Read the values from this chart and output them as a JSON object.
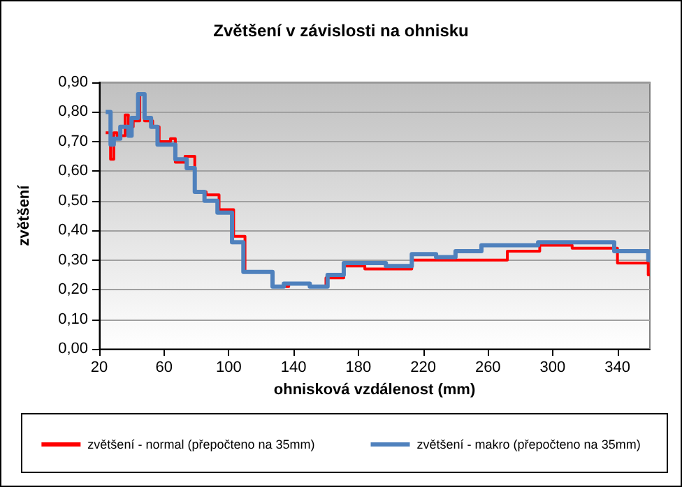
{
  "chart_data": {
    "type": "step",
    "title": "Zvětšení v závislosti na ohnisku",
    "xlabel": "ohnisková vzdálenost (mm)",
    "ylabel": "zvětšení",
    "xlim": [
      20,
      360
    ],
    "xticks": [
      20,
      60,
      100,
      140,
      180,
      220,
      260,
      300,
      340
    ],
    "ylim": [
      0,
      0.9
    ],
    "yticks": [
      {
        "value": 0,
        "label": "0,00"
      },
      {
        "value": 0.1,
        "label": "0,10"
      },
      {
        "value": 0.2,
        "label": "0,20"
      },
      {
        "value": 0.3,
        "label": "0,30"
      },
      {
        "value": 0.4,
        "label": "0,40"
      },
      {
        "value": 0.5,
        "label": "0,50"
      },
      {
        "value": 0.6,
        "label": "0,60"
      },
      {
        "value": 0.7,
        "label": "0,70"
      },
      {
        "value": 0.8,
        "label": "0,80"
      },
      {
        "value": 0.9,
        "label": "0,90"
      }
    ],
    "grid": "y",
    "legend": "bottom",
    "marker": "none",
    "line_style": "solid",
    "series": [
      {
        "name": "zvětšení - normal (přepočteno na 35mm)",
        "color": "#ff0000",
        "x": [
          24,
          27,
          29,
          31,
          36,
          38,
          41,
          45,
          48,
          53,
          57,
          64,
          67,
          73,
          79,
          86,
          94,
          103,
          110,
          127,
          137,
          150,
          160,
          171,
          184,
          213,
          272,
          292,
          312,
          340,
          359,
          360
        ],
        "values": [
          0.73,
          0.64,
          0.73,
          0.72,
          0.79,
          0.75,
          0.77,
          0.86,
          0.77,
          0.75,
          0.7,
          0.71,
          0.63,
          0.65,
          0.53,
          0.52,
          0.47,
          0.38,
          0.26,
          0.21,
          0.22,
          0.21,
          0.24,
          0.28,
          0.27,
          0.3,
          0.33,
          0.35,
          0.34,
          0.29,
          0.25,
          0.25
        ]
      },
      {
        "name": "zvětšení - makro (přepočteno na 35mm)",
        "color": "#4f81bd",
        "x": [
          24,
          27,
          29,
          33,
          38,
          40,
          44,
          48,
          52,
          56,
          67,
          74,
          79,
          85,
          93,
          102,
          109,
          127,
          134,
          150,
          161,
          171,
          197,
          213,
          228,
          240,
          256,
          291,
          312,
          338,
          359,
          360
        ],
        "values": [
          0.8,
          0.69,
          0.71,
          0.75,
          0.72,
          0.78,
          0.86,
          0.78,
          0.75,
          0.69,
          0.64,
          0.61,
          0.53,
          0.5,
          0.46,
          0.36,
          0.26,
          0.21,
          0.22,
          0.21,
          0.25,
          0.29,
          0.28,
          0.32,
          0.31,
          0.33,
          0.35,
          0.36,
          0.36,
          0.33,
          0.3,
          0.3
        ]
      }
    ]
  }
}
